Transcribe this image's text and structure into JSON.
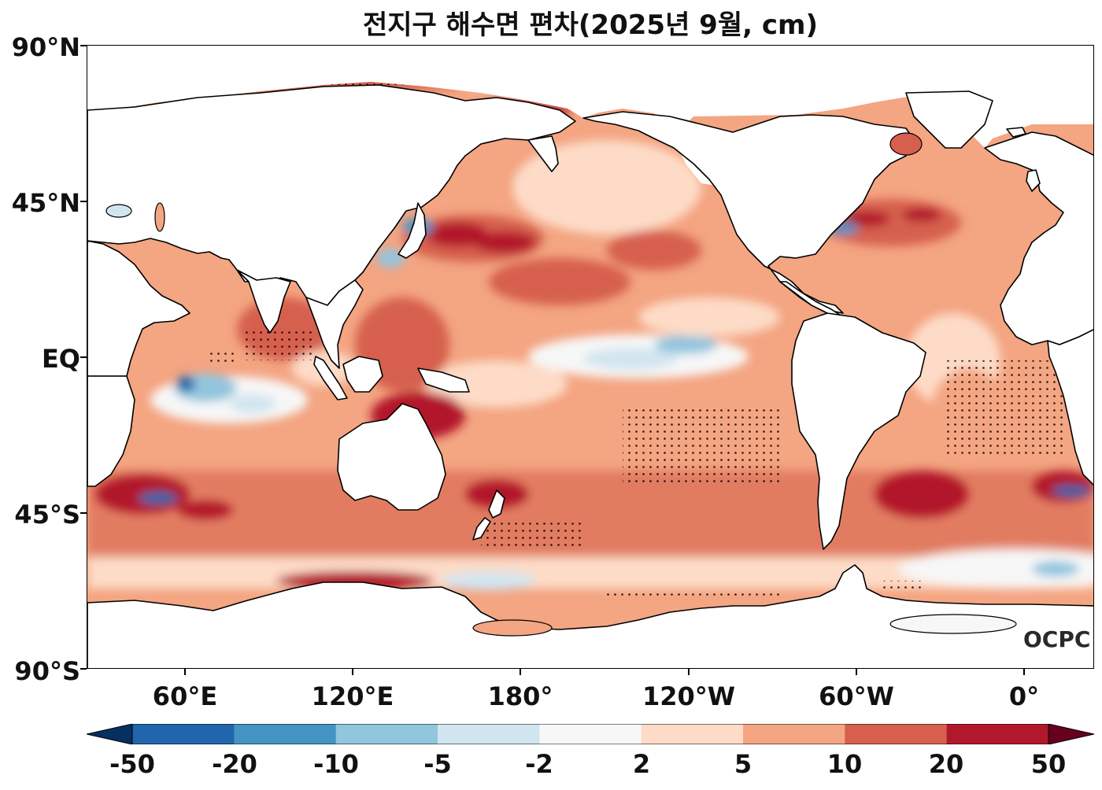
{
  "title": "전지구 해수면 편차(2025년 9월, cm)",
  "watermark": "OCPC",
  "y_axis_labels": [
    "90°N",
    "45°N",
    "EQ",
    "45°S",
    "90°S"
  ],
  "x_axis_labels": [
    "60°E",
    "120°E",
    "180°",
    "120°W",
    "60°W",
    "0°"
  ],
  "x_axis_lon": [
    60,
    120,
    180,
    240,
    300,
    360
  ],
  "y_axis_lat": [
    90,
    45,
    0,
    -45,
    -90
  ],
  "map_extent": {
    "lon_min": 25,
    "lon_max": 385,
    "lat_min": -90,
    "lat_max": 90
  },
  "colorbar": {
    "labels": [
      "-50",
      "-20",
      "-10",
      "-5",
      "-2",
      "2",
      "5",
      "10",
      "20",
      "50"
    ],
    "colors": [
      "#2166ac",
      "#4393c3",
      "#92c5de",
      "#d1e5f0",
      "#f7f7f7",
      "#fddbc7",
      "#f4a582",
      "#d6604d",
      "#b2182b"
    ],
    "extend_low_color": "#053061",
    "extend_high_color": "#67001f"
  },
  "colors": {
    "ocean_base": "#f4a582",
    "land": "#ffffff",
    "coast": "#000000"
  }
}
